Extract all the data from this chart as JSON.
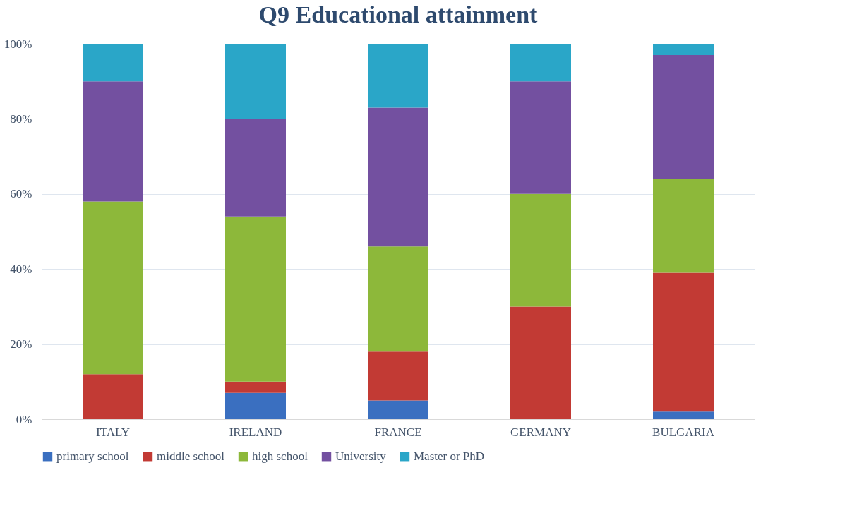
{
  "chart_data": {
    "type": "bar",
    "title": "Q9 Educational attainment",
    "categories": [
      "ITALY",
      "IRELAND",
      "FRANCE",
      "GERMANY",
      "BULGARIA"
    ],
    "stacked": true,
    "series": [
      {
        "name": "primary school",
        "color": "#3a6fc0",
        "values": [
          0,
          7,
          5,
          0,
          2
        ]
      },
      {
        "name": "middle school",
        "color": "#c23a34",
        "values": [
          12,
          3,
          13,
          30,
          37
        ]
      },
      {
        "name": "high school",
        "color": "#8db83a",
        "values": [
          46,
          44,
          28,
          30,
          25
        ]
      },
      {
        "name": "University",
        "color": "#7350a0",
        "values": [
          32,
          26,
          37,
          30,
          33
        ]
      },
      {
        "name": "Master or PhD",
        "color": "#2aa6c8",
        "values": [
          10,
          20,
          17,
          10,
          3
        ]
      }
    ],
    "ylim": [
      0,
      100
    ],
    "yticks": [
      {
        "value": 0,
        "label": "0%"
      },
      {
        "value": 20,
        "label": "20%"
      },
      {
        "value": 40,
        "label": "40%"
      },
      {
        "value": 60,
        "label": "60%"
      },
      {
        "value": 80,
        "label": "80%"
      },
      {
        "value": 100,
        "label": "100%"
      }
    ],
    "grid": "y",
    "legend": "bottom"
  }
}
